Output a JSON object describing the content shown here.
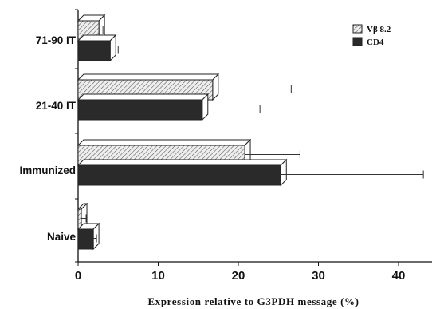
{
  "chart_data": {
    "type": "bar",
    "orientation": "horizontal",
    "style": "3d",
    "categories": [
      "71-90 IT",
      "21-40 IT",
      "Immunized",
      "Naive"
    ],
    "series": [
      {
        "name": "Vβ 8.2",
        "pattern": "hatched",
        "values": [
          2.6,
          16.8,
          20.8,
          0.4
        ],
        "error": [
          0.5,
          9.8,
          6.9,
          0.6
        ]
      },
      {
        "name": "CD4",
        "pattern": "solid-dark",
        "values": [
          4.0,
          15.5,
          25.3,
          1.9
        ],
        "error": [
          1.0,
          7.2,
          17.8,
          0.4
        ]
      }
    ],
    "x_ticks": [
      "0",
      "10",
      "20",
      "30",
      "40"
    ],
    "xlim": [
      0,
      45
    ],
    "xlabel": "Expression relative to G3PDH message (%)",
    "ylabel": "",
    "legend_position": "top-right",
    "grid": false,
    "colors": {
      "solid": "#2a2a2a",
      "hatch_fill": "#eeeeee",
      "hatch_line": "#555555",
      "edge": "#222222"
    }
  }
}
